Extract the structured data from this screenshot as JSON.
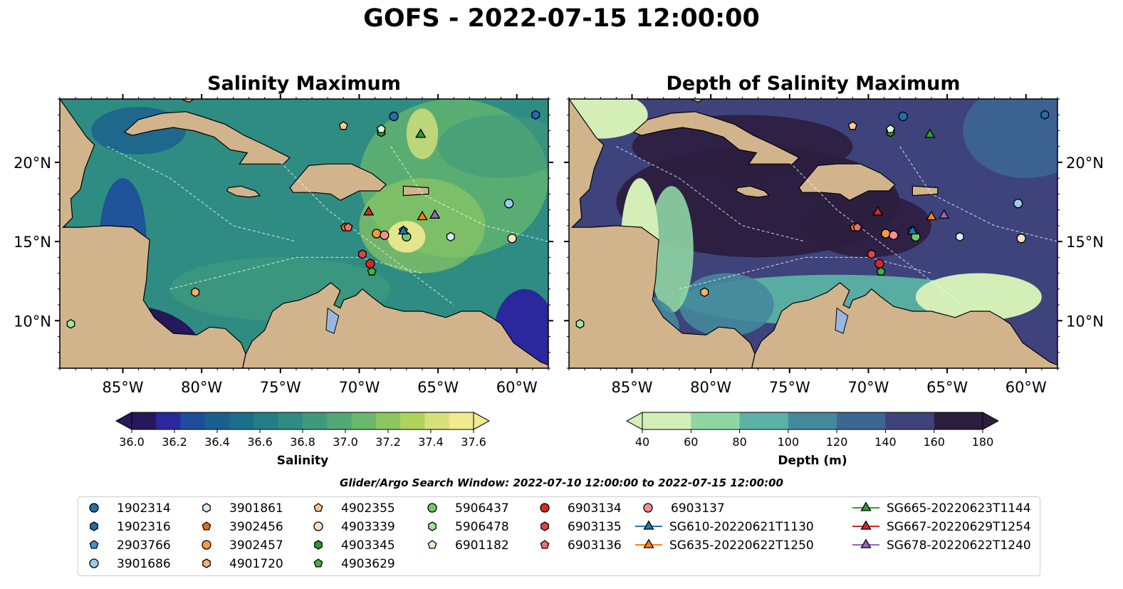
{
  "suptitle": "GOFS - 2022-07-15 12:00:00",
  "chart_data": [
    {
      "type": "heatmap",
      "title": "Salinity Maximum",
      "colorbar": {
        "label": "Salinity",
        "ticks": [
          "36.0",
          "36.2",
          "36.4",
          "36.6",
          "36.8",
          "37.0",
          "37.2",
          "37.4",
          "37.6"
        ],
        "range": [
          36.0,
          37.6
        ],
        "colors": [
          "#26185b",
          "#2b289e",
          "#1e4d9c",
          "#1a5f8f",
          "#1b6f88",
          "#237f85",
          "#2f8c82",
          "#3f9a7c",
          "#52a874",
          "#6ab86c",
          "#8bc661",
          "#b0d35f",
          "#d6e07a",
          "#f1ea90"
        ],
        "extend": "both"
      },
      "x_ticks": [
        "85°W",
        "80°W",
        "75°W",
        "70°W",
        "65°W",
        "60°W"
      ],
      "y_ticks": [
        "20°N",
        "15°N",
        "10°N"
      ],
      "ytick_side": "left",
      "xlim": [
        -89,
        -58
      ],
      "ylim": [
        7,
        24
      ]
    },
    {
      "type": "heatmap",
      "title": "Depth of Salinity Maximum",
      "colorbar": {
        "label": "Depth (m)",
        "ticks": [
          "40",
          "60",
          "80",
          "100",
          "120",
          "140",
          "160",
          "180"
        ],
        "range": [
          40,
          180
        ],
        "colors": [
          "#d4eeb8",
          "#8fd6a4",
          "#5bb2a4",
          "#44889c",
          "#3c6693",
          "#3e437b",
          "#2c1e3f"
        ],
        "extend": "both"
      },
      "x_ticks": [
        "85°W",
        "80°W",
        "75°W",
        "70°W",
        "65°W",
        "60°W"
      ],
      "y_ticks": [
        "20°N",
        "15°N",
        "10°N"
      ],
      "ytick_side": "right",
      "xlim": [
        -89,
        -58
      ],
      "ylim": [
        7,
        24
      ]
    }
  ],
  "markers": [
    {
      "id": "1902314",
      "lon": -67.8,
      "lat": 22.9,
      "shape": "circle",
      "color": "#1f6fb0"
    },
    {
      "id": "1902316",
      "lon": -58.8,
      "lat": 23.0,
      "shape": "hexagon",
      "color": "#1f6fb0"
    },
    {
      "id": "2903766",
      "lon": -67.2,
      "lat": 15.7,
      "shape": "pentagon",
      "color": "#4b93c8"
    },
    {
      "id": "3901686",
      "lon": -60.5,
      "lat": 17.4,
      "shape": "circle",
      "color": "#9dcbec"
    },
    {
      "id": "3901861",
      "lon": -64.2,
      "lat": 15.3,
      "shape": "hexagon",
      "color": "#d8ecf8"
    },
    {
      "id": "3902456",
      "lon": -70.9,
      "lat": 15.9,
      "shape": "pentagon",
      "color": "#e66d0e"
    },
    {
      "id": "3902457",
      "lon": -68.9,
      "lat": 15.5,
      "shape": "circle",
      "color": "#f79a3c"
    },
    {
      "id": "4901720",
      "lon": -80.4,
      "lat": 11.8,
      "shape": "hexagon",
      "color": "#f9b06a"
    },
    {
      "id": "4902355",
      "lon": -71.0,
      "lat": 22.3,
      "shape": "pentagon",
      "color": "#fbc98d"
    },
    {
      "id": "4903339",
      "lon": -60.3,
      "lat": 15.2,
      "shape": "circle",
      "color": "#fde0c2"
    },
    {
      "id": "4903345",
      "lon": -68.6,
      "lat": 21.9,
      "shape": "hexagon",
      "color": "#2d9a2d"
    },
    {
      "id": "4903629",
      "lon": -69.2,
      "lat": 13.1,
      "shape": "pentagon",
      "color": "#3fb13f"
    },
    {
      "id": "5906437",
      "lon": -67.0,
      "lat": 15.3,
      "shape": "circle",
      "color": "#6fcb6a"
    },
    {
      "id": "5906478",
      "lon": -88.3,
      "lat": 9.8,
      "shape": "hexagon",
      "color": "#a3e39b"
    },
    {
      "id": "6901182",
      "lon": -68.6,
      "lat": 22.1,
      "shape": "pentagon",
      "color": "#d5f5cf"
    },
    {
      "id": "6903134",
      "lon": -69.3,
      "lat": 13.6,
      "shape": "circle",
      "color": "#d42a2a"
    },
    {
      "id": "6903135",
      "lon": -69.8,
      "lat": 14.2,
      "shape": "hexagon",
      "color": "#e04545"
    },
    {
      "id": "6903136",
      "lon": -70.7,
      "lat": 15.9,
      "shape": "pentagon",
      "color": "#ef6f6f"
    },
    {
      "id": "6903137",
      "lon": -68.4,
      "lat": 15.4,
      "shape": "circle",
      "color": "#f09090"
    },
    {
      "id": "SG610-20220621T1130",
      "lon": -67.2,
      "lat": 15.7,
      "shape": "triangle",
      "color": "#1f77b4"
    },
    {
      "id": "SG635-20220622T1250",
      "lon": -66.0,
      "lat": 16.6,
      "shape": "triangle",
      "color": "#ff7f0e"
    },
    {
      "id": "SG665-20220623T1144",
      "lon": -66.1,
      "lat": 21.8,
      "shape": "triangle",
      "color": "#2ca02c"
    },
    {
      "id": "SG667-20220629T1254",
      "lon": -69.4,
      "lat": 16.9,
      "shape": "triangle",
      "color": "#d62728"
    },
    {
      "id": "SG678-20220622T1240",
      "lon": -65.2,
      "lat": 16.7,
      "shape": "triangle",
      "color": "#9467bd"
    }
  ],
  "search_window": "Glider/Argo Search Window: 2022-07-10 12:00:00 to 2022-07-15 12:00:00",
  "legend": {
    "columns": [
      [
        "1902314",
        "1902316",
        "2903766",
        "3901686"
      ],
      [
        "3901861",
        "3902456",
        "3902457",
        "4901720"
      ],
      [
        "4902355",
        "4903339",
        "4903345",
        "4903629"
      ],
      [
        "5906437",
        "5906478",
        "6901182"
      ],
      [
        "6903134",
        "6903135",
        "6903136"
      ],
      [
        "6903137",
        "SG610-20220621T1130",
        "SG635-20220622T1250"
      ],
      [
        "SG665-20220623T1144",
        "SG667-20220629T1254",
        "SG678-20220622T1240"
      ]
    ]
  },
  "colors": {
    "land": "#d2b48c",
    "lake": "#97b6e1",
    "river": "#a8b8d8"
  }
}
